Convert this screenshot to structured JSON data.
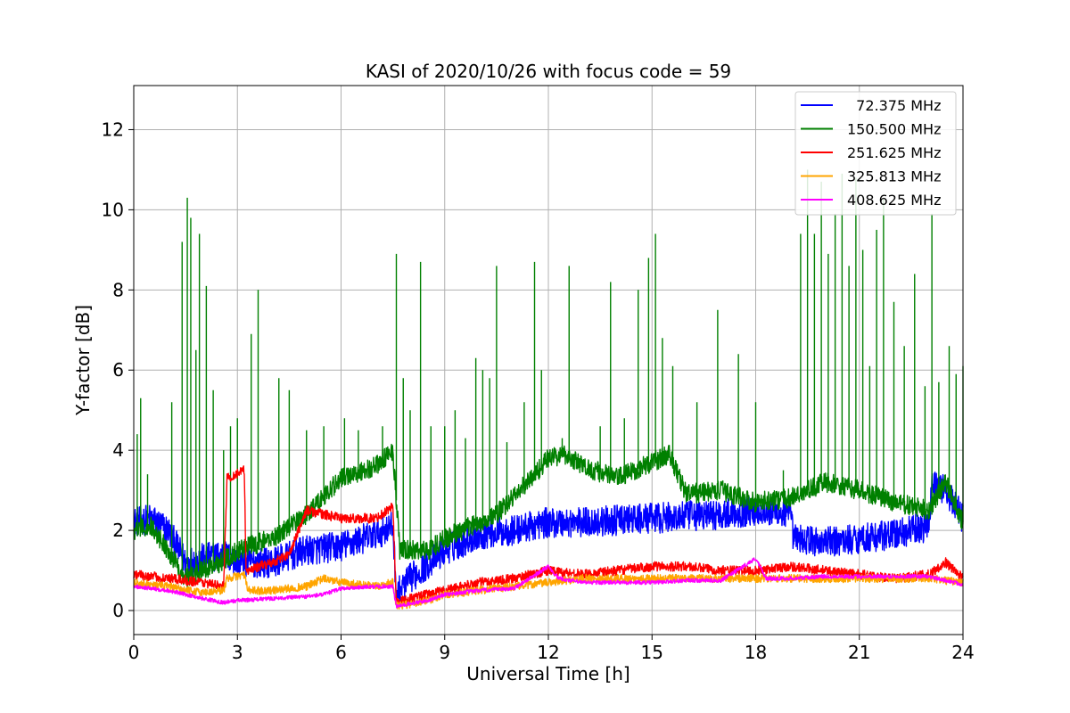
{
  "chart_data": {
    "type": "line",
    "title": "KASI of 2020/10/26 with focus code = 59",
    "xlabel": "Universal Time [h]",
    "ylabel": "Y-factor [dB]",
    "xlim": [
      0,
      24
    ],
    "ylim": [
      -0.6,
      13.1
    ],
    "xticks": [
      0,
      3,
      6,
      9,
      12,
      15,
      18,
      21,
      24
    ],
    "yticks": [
      0,
      2,
      4,
      6,
      8,
      10,
      12
    ],
    "grid": true,
    "legend_position": "top-right",
    "series": [
      {
        "name": "  72.375 MHz",
        "color": "#0000ff",
        "baseline": [
          [
            0,
            2.2
          ],
          [
            0.5,
            2.3
          ],
          [
            1.0,
            2.0
          ],
          [
            1.5,
            1.2
          ],
          [
            2.0,
            1.3
          ],
          [
            2.6,
            1.4
          ],
          [
            3.0,
            1.2
          ],
          [
            4.0,
            1.2
          ],
          [
            5.0,
            1.5
          ],
          [
            6.0,
            1.6
          ],
          [
            7.0,
            1.9
          ],
          [
            7.5,
            2.1
          ],
          [
            7.6,
            0.4
          ],
          [
            8.0,
            0.8
          ],
          [
            9.0,
            1.5
          ],
          [
            10.0,
            1.9
          ],
          [
            11.0,
            2.0
          ],
          [
            12.0,
            2.2
          ],
          [
            13.0,
            2.2
          ],
          [
            15.0,
            2.3
          ],
          [
            17.0,
            2.4
          ],
          [
            18.0,
            2.5
          ],
          [
            19.0,
            2.4
          ],
          [
            19.1,
            1.8
          ],
          [
            20.0,
            1.7
          ],
          [
            21.0,
            1.8
          ],
          [
            22.0,
            1.9
          ],
          [
            22.5,
            2.0
          ],
          [
            23.0,
            2.1
          ],
          [
            23.1,
            3.2
          ],
          [
            23.5,
            3.0
          ],
          [
            24.0,
            2.3
          ]
        ],
        "noise": 0.38,
        "spikes": []
      },
      {
        "name": "150.500 MHz",
        "color": "#008000",
        "baseline": [
          [
            0,
            2.0
          ],
          [
            0.5,
            2.1
          ],
          [
            1.0,
            1.5
          ],
          [
            1.5,
            0.8
          ],
          [
            2.0,
            1.0
          ],
          [
            2.5,
            1.2
          ],
          [
            3.0,
            1.5
          ],
          [
            4.0,
            1.8
          ],
          [
            5.0,
            2.4
          ],
          [
            6.0,
            3.3
          ],
          [
            7.0,
            3.6
          ],
          [
            7.5,
            4.0
          ],
          [
            7.7,
            1.5
          ],
          [
            8.5,
            1.5
          ],
          [
            9.0,
            1.8
          ],
          [
            9.5,
            2.0
          ],
          [
            10.5,
            2.4
          ],
          [
            11.5,
            3.3
          ],
          [
            12.0,
            3.8
          ],
          [
            12.5,
            3.9
          ],
          [
            13.0,
            3.6
          ],
          [
            14.0,
            3.3
          ],
          [
            15.0,
            3.7
          ],
          [
            15.5,
            3.9
          ],
          [
            16.0,
            2.9
          ],
          [
            17.0,
            3.0
          ],
          [
            18.0,
            2.7
          ],
          [
            19.0,
            2.8
          ],
          [
            20.0,
            3.2
          ],
          [
            21.0,
            3.0
          ],
          [
            22.0,
            2.7
          ],
          [
            23.0,
            2.5
          ],
          [
            23.5,
            3.2
          ],
          [
            24.0,
            2.2
          ]
        ],
        "noise": 0.25,
        "spikes": [
          [
            0.1,
            4.4
          ],
          [
            0.2,
            5.3
          ],
          [
            0.4,
            3.4
          ],
          [
            1.1,
            5.2
          ],
          [
            1.4,
            9.2
          ],
          [
            1.55,
            10.3
          ],
          [
            1.65,
            9.8
          ],
          [
            1.8,
            6.5
          ],
          [
            1.9,
            9.4
          ],
          [
            2.1,
            8.1
          ],
          [
            2.3,
            5.5
          ],
          [
            2.6,
            4.0
          ],
          [
            2.8,
            4.6
          ],
          [
            3.0,
            4.8
          ],
          [
            3.4,
            6.9
          ],
          [
            3.6,
            8.0
          ],
          [
            4.2,
            5.8
          ],
          [
            4.5,
            5.5
          ],
          [
            5.0,
            4.5
          ],
          [
            5.5,
            4.6
          ],
          [
            6.1,
            4.8
          ],
          [
            6.5,
            4.5
          ],
          [
            7.2,
            4.6
          ],
          [
            7.6,
            8.9
          ],
          [
            7.8,
            5.8
          ],
          [
            8.0,
            5.0
          ],
          [
            8.3,
            8.7
          ],
          [
            8.6,
            4.6
          ],
          [
            9.0,
            4.6
          ],
          [
            9.3,
            5.0
          ],
          [
            9.6,
            4.3
          ],
          [
            9.9,
            6.3
          ],
          [
            10.1,
            6.0
          ],
          [
            10.3,
            5.8
          ],
          [
            10.5,
            8.6
          ],
          [
            10.8,
            4.2
          ],
          [
            11.3,
            5.2
          ],
          [
            11.6,
            8.7
          ],
          [
            11.8,
            6.0
          ],
          [
            12.4,
            4.3
          ],
          [
            12.6,
            8.6
          ],
          [
            13.5,
            4.6
          ],
          [
            13.8,
            8.2
          ],
          [
            14.2,
            4.8
          ],
          [
            14.6,
            8.0
          ],
          [
            14.9,
            8.8
          ],
          [
            15.1,
            9.4
          ],
          [
            15.3,
            6.8
          ],
          [
            15.6,
            6.1
          ],
          [
            16.3,
            5.2
          ],
          [
            16.9,
            7.5
          ],
          [
            17.5,
            6.4
          ],
          [
            18.0,
            5.2
          ],
          [
            18.8,
            3.5
          ],
          [
            19.3,
            9.4
          ],
          [
            19.5,
            11.0
          ],
          [
            19.7,
            9.4
          ],
          [
            19.9,
            10.7
          ],
          [
            20.1,
            8.9
          ],
          [
            20.3,
            9.9
          ],
          [
            20.5,
            10.9
          ],
          [
            20.7,
            8.6
          ],
          [
            20.9,
            10.8
          ],
          [
            21.1,
            9.0
          ],
          [
            21.3,
            6.1
          ],
          [
            21.5,
            9.5
          ],
          [
            21.7,
            10.3
          ],
          [
            22.0,
            7.7
          ],
          [
            22.3,
            6.6
          ],
          [
            22.6,
            8.4
          ],
          [
            22.9,
            5.6
          ],
          [
            23.1,
            9.9
          ],
          [
            23.3,
            5.7
          ],
          [
            23.6,
            6.6
          ],
          [
            23.8,
            5.9
          ],
          [
            24.0,
            6.1
          ]
        ]
      },
      {
        "name": "251.625 MHz",
        "color": "#ff0000",
        "baseline": [
          [
            0,
            0.9
          ],
          [
            0.5,
            0.85
          ],
          [
            1.0,
            0.8
          ],
          [
            1.5,
            0.75
          ],
          [
            2.0,
            0.7
          ],
          [
            2.6,
            0.6
          ],
          [
            2.7,
            3.3
          ],
          [
            3.2,
            3.5
          ],
          [
            3.25,
            1.0
          ],
          [
            4.0,
            1.2
          ],
          [
            4.5,
            1.4
          ],
          [
            5.0,
            2.5
          ],
          [
            5.5,
            2.4
          ],
          [
            6.0,
            2.3
          ],
          [
            7.0,
            2.3
          ],
          [
            7.5,
            2.6
          ],
          [
            7.6,
            0.2
          ],
          [
            8.0,
            0.3
          ],
          [
            9.0,
            0.5
          ],
          [
            10.0,
            0.7
          ],
          [
            11.0,
            0.8
          ],
          [
            12.0,
            1.0
          ],
          [
            13.0,
            0.9
          ],
          [
            14.0,
            1.0
          ],
          [
            15.0,
            1.1
          ],
          [
            16.0,
            1.1
          ],
          [
            17.0,
            1.0
          ],
          [
            18.0,
            1.0
          ],
          [
            19.0,
            1.1
          ],
          [
            20.0,
            1.0
          ],
          [
            21.0,
            0.9
          ],
          [
            22.0,
            0.8
          ],
          [
            23.0,
            0.9
          ],
          [
            23.5,
            1.2
          ],
          [
            24.0,
            0.8
          ]
        ],
        "noise": 0.12,
        "spikes": []
      },
      {
        "name": "325.813 MHz",
        "color": "#ffa500",
        "baseline": [
          [
            0,
            0.7
          ],
          [
            0.5,
            0.65
          ],
          [
            1.0,
            0.6
          ],
          [
            1.5,
            0.5
          ],
          [
            2.0,
            0.45
          ],
          [
            2.6,
            0.5
          ],
          [
            2.7,
            0.8
          ],
          [
            3.2,
            0.9
          ],
          [
            3.3,
            0.5
          ],
          [
            4.0,
            0.5
          ],
          [
            5.0,
            0.6
          ],
          [
            5.5,
            0.8
          ],
          [
            6.0,
            0.7
          ],
          [
            7.0,
            0.6
          ],
          [
            7.5,
            0.7
          ],
          [
            7.6,
            0.1
          ],
          [
            8.5,
            0.25
          ],
          [
            9.0,
            0.4
          ],
          [
            10.0,
            0.5
          ],
          [
            11.0,
            0.6
          ],
          [
            12.0,
            0.7
          ],
          [
            13.0,
            0.8
          ],
          [
            15.0,
            0.8
          ],
          [
            17.0,
            0.8
          ],
          [
            18.0,
            0.8
          ],
          [
            19.0,
            0.8
          ],
          [
            20.0,
            0.8
          ],
          [
            22.0,
            0.8
          ],
          [
            23.0,
            0.8
          ],
          [
            24.0,
            0.7
          ]
        ],
        "noise": 0.1,
        "spikes": []
      },
      {
        "name": "408.625 MHz",
        "color": "#ff00ff",
        "baseline": [
          [
            0,
            0.6
          ],
          [
            0.5,
            0.55
          ],
          [
            1.0,
            0.5
          ],
          [
            1.5,
            0.4
          ],
          [
            2.0,
            0.3
          ],
          [
            2.6,
            0.2
          ],
          [
            3.0,
            0.25
          ],
          [
            4.0,
            0.3
          ],
          [
            5.0,
            0.35
          ],
          [
            5.5,
            0.4
          ],
          [
            6.0,
            0.55
          ],
          [
            7.0,
            0.6
          ],
          [
            7.5,
            0.6
          ],
          [
            7.6,
            0.1
          ],
          [
            8.5,
            0.25
          ],
          [
            9.0,
            0.4
          ],
          [
            10.0,
            0.5
          ],
          [
            11.0,
            0.55
          ],
          [
            12.0,
            1.1
          ],
          [
            12.3,
            0.8
          ],
          [
            13.0,
            0.7
          ],
          [
            14.0,
            0.7
          ],
          [
            15.0,
            0.7
          ],
          [
            16.0,
            0.75
          ],
          [
            17.0,
            0.75
          ],
          [
            18.0,
            1.3
          ],
          [
            18.3,
            0.8
          ],
          [
            19.0,
            0.8
          ],
          [
            20.0,
            0.85
          ],
          [
            21.0,
            0.85
          ],
          [
            22.0,
            0.85
          ],
          [
            23.0,
            0.85
          ],
          [
            24.0,
            0.65
          ]
        ],
        "noise": 0.05,
        "spikes": []
      }
    ]
  }
}
